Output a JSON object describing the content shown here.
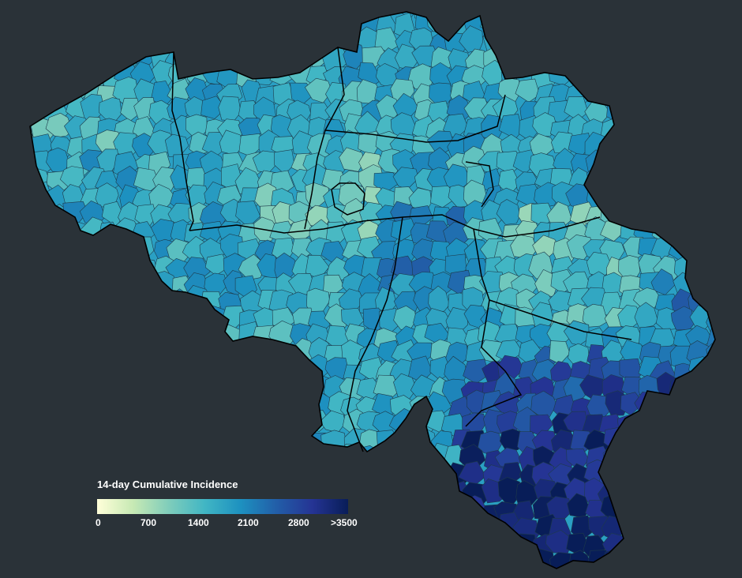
{
  "legend": {
    "title": "14-day Cumulative Incidence",
    "ticks": [
      "0",
      "700",
      "1400",
      "2100",
      "2800",
      ">3500"
    ],
    "min": 0,
    "max": 3500,
    "colors": [
      "#ffffd9",
      "#c7e9b4",
      "#7fcdbb",
      "#41b6c4",
      "#1d91c0",
      "#225ea8",
      "#253494",
      "#081d58"
    ]
  },
  "map": {
    "background": "#2a3238",
    "border_color": "#000000"
  }
}
